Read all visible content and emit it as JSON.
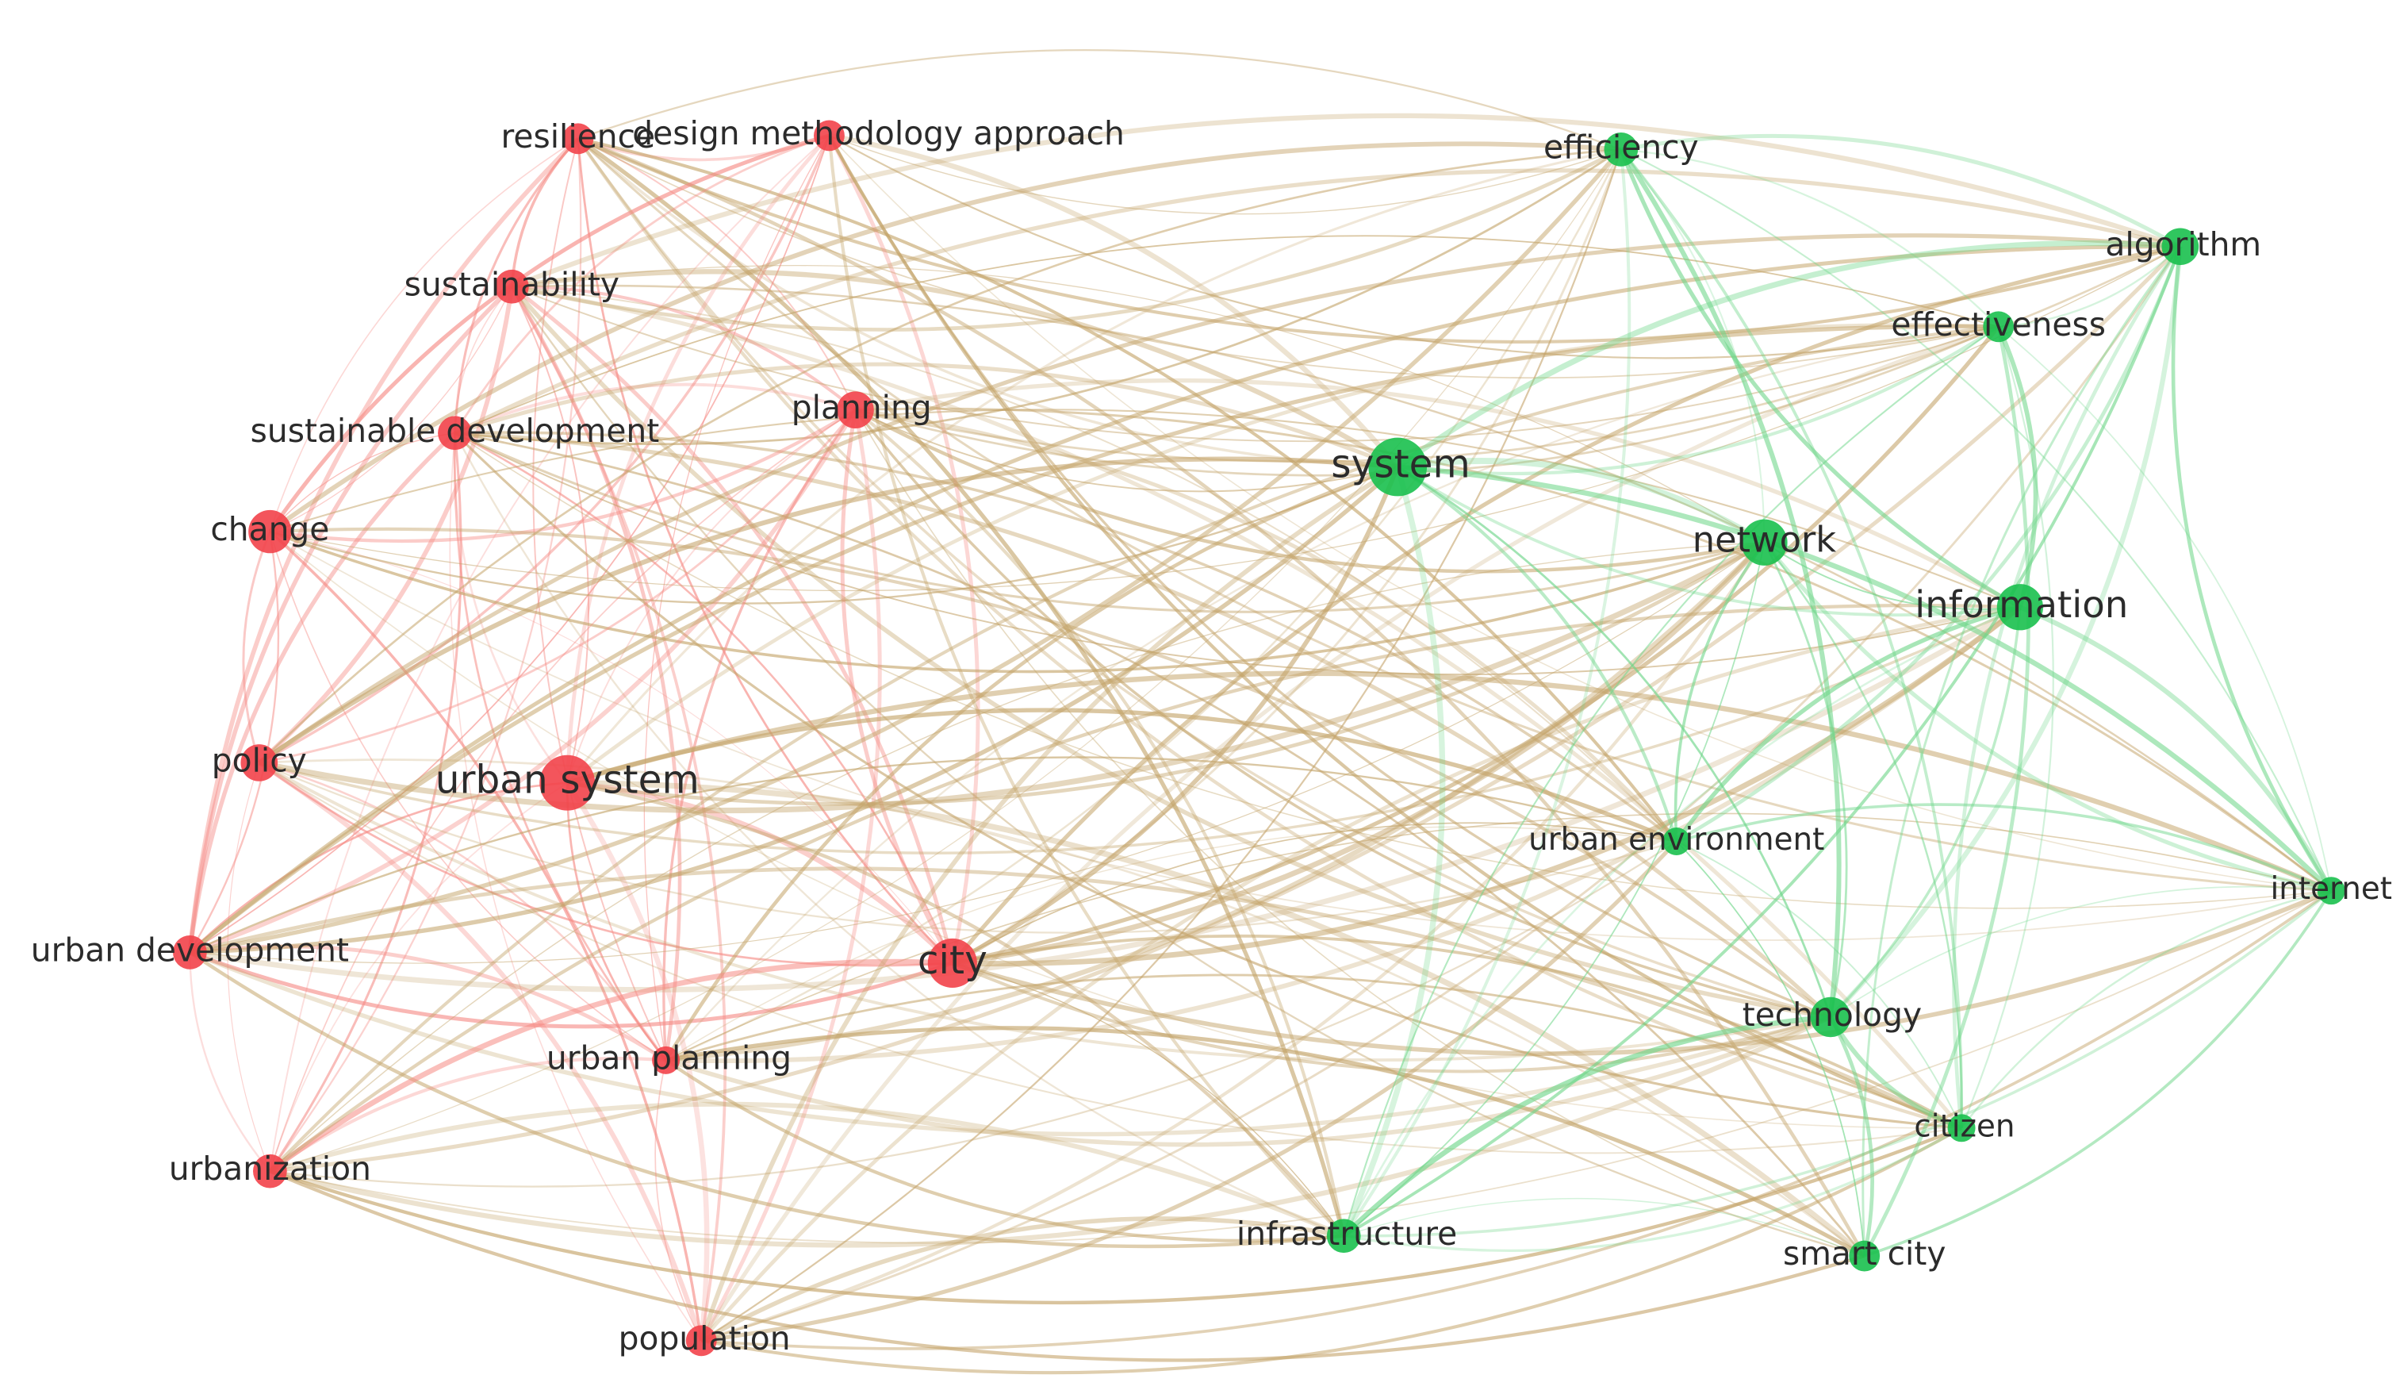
{
  "nodes": [
    {
      "label": "resilience",
      "color": "#f2434a"
    },
    {
      "label": "design methodology approach",
      "color": "#f2434a"
    },
    {
      "label": "sustainability",
      "color": "#f2434a"
    },
    {
      "label": "sustainable development",
      "color": "#f2434a"
    },
    {
      "label": "change",
      "color": "#f2434a"
    },
    {
      "label": "planning",
      "color": "#f2434a"
    },
    {
      "label": "urban system",
      "color": "#f2434a"
    },
    {
      "label": "policy",
      "color": "#f2434a"
    },
    {
      "label": "urban development",
      "color": "#f2434a"
    },
    {
      "label": "urban planning",
      "color": "#f2434a"
    },
    {
      "label": "city",
      "color": "#f2434a"
    },
    {
      "label": "urbanization",
      "color": "#f2434a"
    },
    {
      "label": "population",
      "color": "#f2434a"
    },
    {
      "label": "system",
      "color": "#19c04e"
    },
    {
      "label": "efficiency",
      "color": "#19c04e"
    },
    {
      "label": "algorithm",
      "color": "#19c04e"
    },
    {
      "label": "effectiveness",
      "color": "#19c04e"
    },
    {
      "label": "network",
      "color": "#19c04e"
    },
    {
      "label": "information",
      "color": "#19c04e"
    },
    {
      "label": "urban environment",
      "color": "#19c04e"
    },
    {
      "label": "internet",
      "color": "#19c04e"
    },
    {
      "label": "technology",
      "color": "#19c04e"
    },
    {
      "label": "citizen",
      "color": "#19c04e"
    },
    {
      "label": "infrastructure",
      "color": "#19c04e"
    },
    {
      "label": "smart city",
      "color": "#19c04e"
    }
  ]
}
